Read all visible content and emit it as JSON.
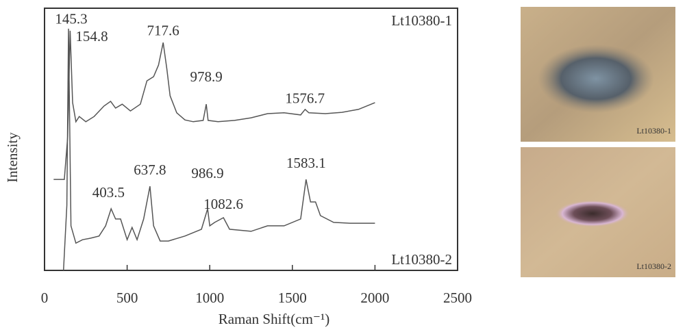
{
  "chart_data": {
    "type": "line",
    "xlabel": "Raman Shift(cm⁻¹)",
    "ylabel": "Intensity",
    "xlim": [
      0,
      2500
    ],
    "xticks": [
      0,
      500,
      1000,
      1500,
      2000,
      2500
    ],
    "ylim": [
      0,
      100
    ],
    "series": [
      {
        "name": "Lt10380-1",
        "color": "#555555",
        "x": [
          55,
          120,
          140,
          155,
          170,
          190,
          210,
          250,
          300,
          360,
          400,
          430,
          470,
          520,
          580,
          620,
          660,
          690,
          718,
          740,
          760,
          800,
          850,
          900,
          960,
          979,
          990,
          1050,
          1150,
          1250,
          1350,
          1450,
          1550,
          1577,
          1600,
          1700,
          1800,
          1900,
          2000
        ],
        "values": [
          34.7,
          34.7,
          50.9,
          91.4,
          64.0,
          56.7,
          58.7,
          56.7,
          58.7,
          62.7,
          64.5,
          61.9,
          63.4,
          60.8,
          63.4,
          72.3,
          73.9,
          78.3,
          86.9,
          77.0,
          66.6,
          60.1,
          57.4,
          56.7,
          57.2,
          63.4,
          57.2,
          56.7,
          57.2,
          58.2,
          59.8,
          60.1,
          59.3,
          61.4,
          60.1,
          59.8,
          60.3,
          61.4,
          64.0
        ],
        "peaks": [
          154.8,
          717.6,
          978.9,
          1576.7
        ]
      },
      {
        "name": "Lt10380-2",
        "color": "#555555",
        "x": [
          115,
          135,
          145,
          160,
          190,
          230,
          280,
          330,
          370,
          403,
          430,
          460,
          500,
          530,
          560,
          600,
          638,
          660,
          700,
          750,
          850,
          950,
          987,
          1000,
          1030,
          1083,
          1120,
          1250,
          1350,
          1450,
          1550,
          1583,
          1610,
          1640,
          1670,
          1750,
          1850,
          2000
        ],
        "values": [
          0,
          24.8,
          92.2,
          17.0,
          10.4,
          11.7,
          12.3,
          13.1,
          17.0,
          23.5,
          19.6,
          19.6,
          11.7,
          16.4,
          11.7,
          19.6,
          32.1,
          17.0,
          11.2,
          11.2,
          13.1,
          15.7,
          23.5,
          17.0,
          18.3,
          20.1,
          15.7,
          14.9,
          17.0,
          17.0,
          19.6,
          34.7,
          26.1,
          26.1,
          20.9,
          18.3,
          18.0,
          18.0
        ],
        "peaks": [
          145.3,
          403.5,
          637.8,
          986.9,
          1082.6,
          1583.1
        ]
      }
    ]
  },
  "photos": [
    {
      "caption": "Lt10380-1"
    },
    {
      "caption": "Lt10380-2"
    }
  ]
}
